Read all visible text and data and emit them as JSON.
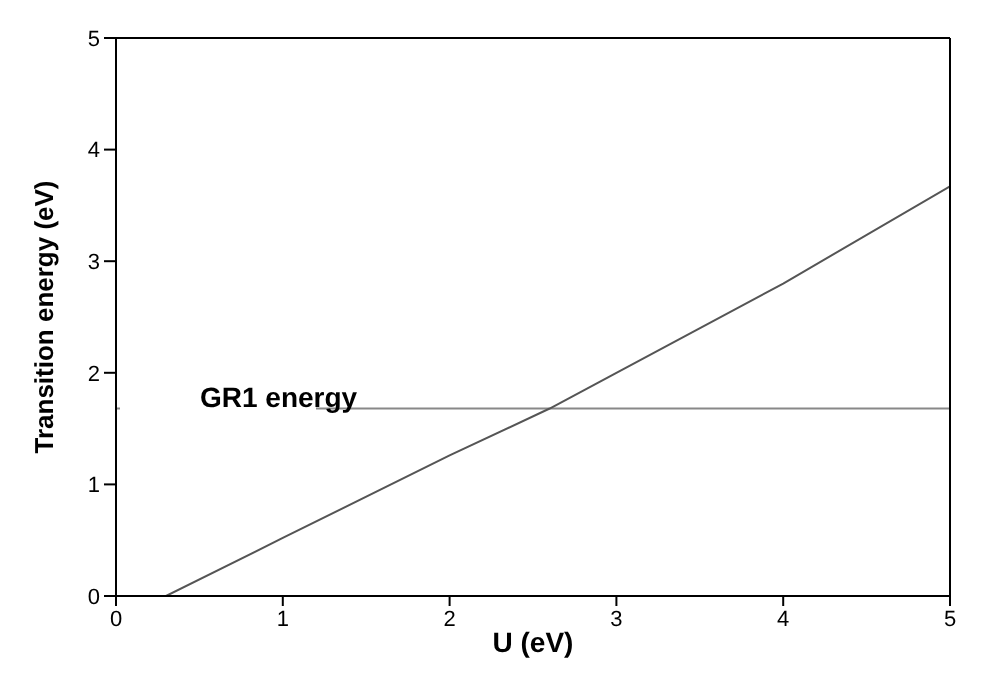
{
  "chart_data": {
    "type": "line",
    "xlabel": "U (eV)",
    "ylabel": "Transition energy (eV)",
    "x": [
      0.3,
      1,
      2,
      2.6,
      3,
      4,
      5
    ],
    "series": [
      {
        "color": "#555555",
        "values": [
          0,
          0.52,
          1.26,
          1.68,
          2.0,
          2.8,
          3.67
        ]
      }
    ],
    "xlim": [
      0,
      5
    ],
    "xticks": [
      0,
      1,
      2,
      3,
      4,
      5
    ],
    "ylim": [
      0,
      5
    ],
    "yticks": [
      0,
      1,
      2,
      3,
      4,
      5
    ],
    "ref_lines": [
      {
        "axis": "y",
        "value": 1.68,
        "label": "GR1 energy",
        "color": "#888888"
      }
    ],
    "grid": false,
    "legend": false,
    "marker": "none",
    "line_style": "solid"
  }
}
